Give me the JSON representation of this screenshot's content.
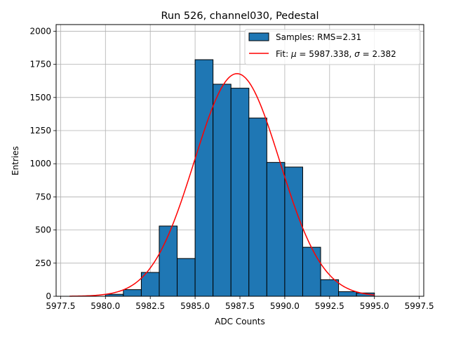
{
  "chart_data": {
    "type": "bar",
    "title": "Run 526, channel030, Pedestal",
    "xlabel": "ADC Counts",
    "ylabel": "Entries",
    "xlim": [
      5977.25,
      5997.75
    ],
    "ylim": [
      0,
      2050
    ],
    "grid": true,
    "legend_placement": "top-right",
    "x_ticks": [
      "5977.5",
      "5980.0",
      "5982.5",
      "5985.0",
      "5987.5",
      "5990.0",
      "5992.5",
      "5995.0",
      "5997.5"
    ],
    "x_tick_values": [
      5977.5,
      5980.0,
      5982.5,
      5985.0,
      5987.5,
      5990.0,
      5992.5,
      5995.0,
      5997.5
    ],
    "y_ticks": [
      "0",
      "250",
      "500",
      "750",
      "1000",
      "1250",
      "1500",
      "1750",
      "2000"
    ],
    "y_tick_values": [
      0,
      250,
      500,
      750,
      1000,
      1250,
      1500,
      1750,
      2000
    ],
    "histogram": {
      "name": "Samples: RMS=2.31",
      "color": "#1f77b4",
      "edge_color": "#000000",
      "bin_edges": [
        5980,
        5981,
        5982,
        5983,
        5984,
        5985,
        5986,
        5987,
        5988,
        5989,
        5990,
        5991,
        5992,
        5993,
        5994,
        5995
      ],
      "values": [
        15,
        50,
        180,
        530,
        285,
        1785,
        1600,
        1570,
        1345,
        1010,
        975,
        370,
        125,
        35,
        25
      ]
    },
    "fit": {
      "name_prefix": "Fit: ",
      "name_mu": "μ",
      "name_mid": " = 5987.338, ",
      "name_sigma": "σ",
      "name_suffix": " = 2.382",
      "color": "#ff0000",
      "mu": 5987.338,
      "sigma": 2.382,
      "amplitude": 1680,
      "x_range": [
        5978,
        5995
      ]
    }
  }
}
